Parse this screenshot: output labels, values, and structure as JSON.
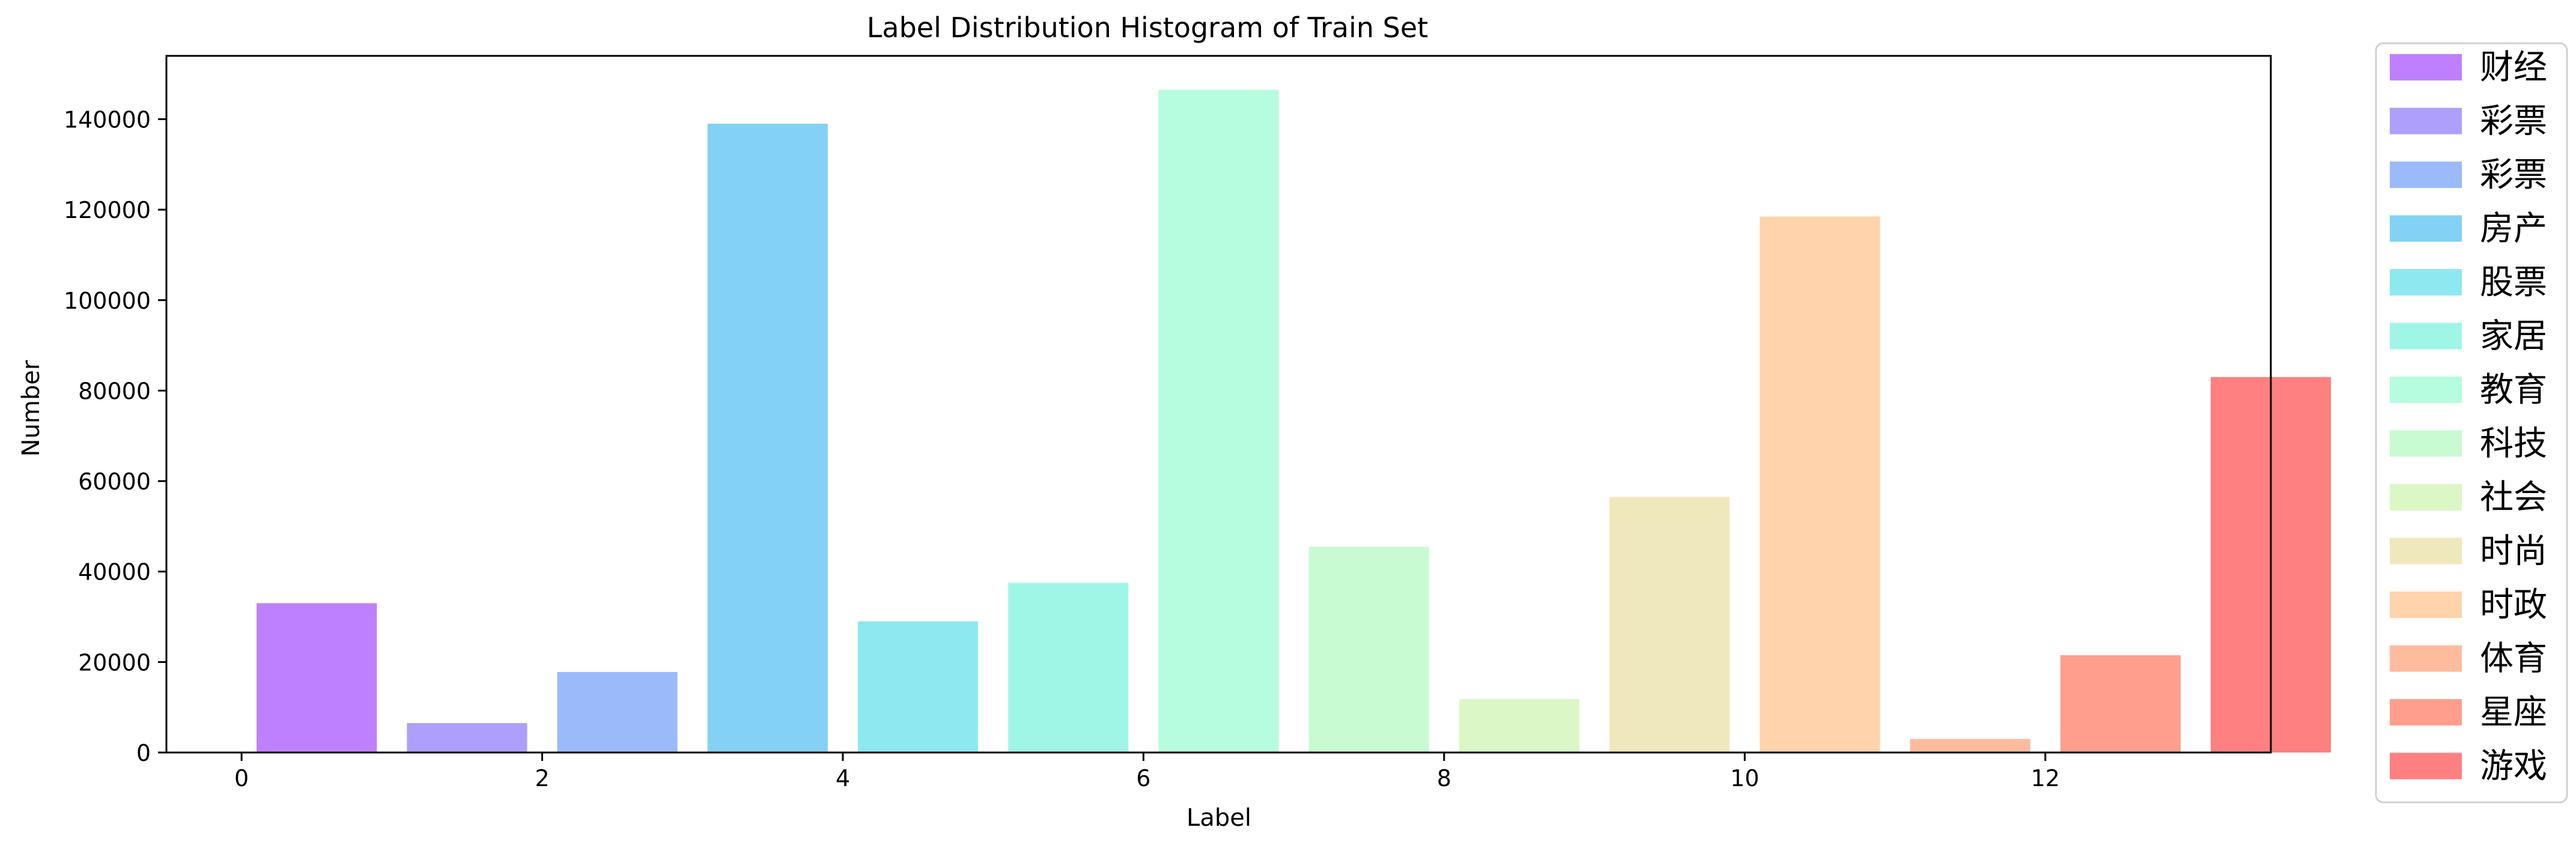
{
  "chart_data": {
    "type": "bar",
    "title": "Label Distribution Histogram of Train Set",
    "xlabel": "Label",
    "ylabel": "Number",
    "xlim": [
      -0.5,
      13.5
    ],
    "ylim": [
      0,
      154000
    ],
    "xticks": [
      0,
      2,
      4,
      6,
      8,
      10,
      12
    ],
    "yticks": [
      0,
      20000,
      40000,
      60000,
      80000,
      100000,
      120000,
      140000
    ],
    "grid": false,
    "legend_position": "outside-right",
    "series": [
      {
        "name": "财经",
        "x": 0.5,
        "value": 33000,
        "color": "#bf80ff"
      },
      {
        "name": "彩票",
        "x": 1.5,
        "value": 6500,
        "color": "#af9ffc"
      },
      {
        "name": "彩票",
        "x": 2.5,
        "value": 17800,
        "color": "#9bbaf9"
      },
      {
        "name": "房产",
        "x": 3.5,
        "value": 139000,
        "color": "#83d1f5"
      },
      {
        "name": "股票",
        "x": 4.5,
        "value": 29000,
        "color": "#8ee8f0"
      },
      {
        "name": "家居",
        "x": 5.5,
        "value": 37500,
        "color": "#a0f6e6"
      },
      {
        "name": "教育",
        "x": 6.5,
        "value": 146500,
        "color": "#b5fdde"
      },
      {
        "name": "科技",
        "x": 7.5,
        "value": 45500,
        "color": "#c8fbd2"
      },
      {
        "name": "社会",
        "x": 8.5,
        "value": 11800,
        "color": "#dcf7c6"
      },
      {
        "name": "时尚",
        "x": 9.5,
        "value": 56500,
        "color": "#efe8bd"
      },
      {
        "name": "时政",
        "x": 10.5,
        "value": 118500,
        "color": "#ffd3ab"
      },
      {
        "name": "体育",
        "x": 11.5,
        "value": 3000,
        "color": "#ffbb9e"
      },
      {
        "name": "星座",
        "x": 12.5,
        "value": 21500,
        "color": "#ff9e8c"
      },
      {
        "name": "游戏",
        "x": 13.5,
        "value": 83000,
        "color": "#ff8080"
      }
    ]
  }
}
